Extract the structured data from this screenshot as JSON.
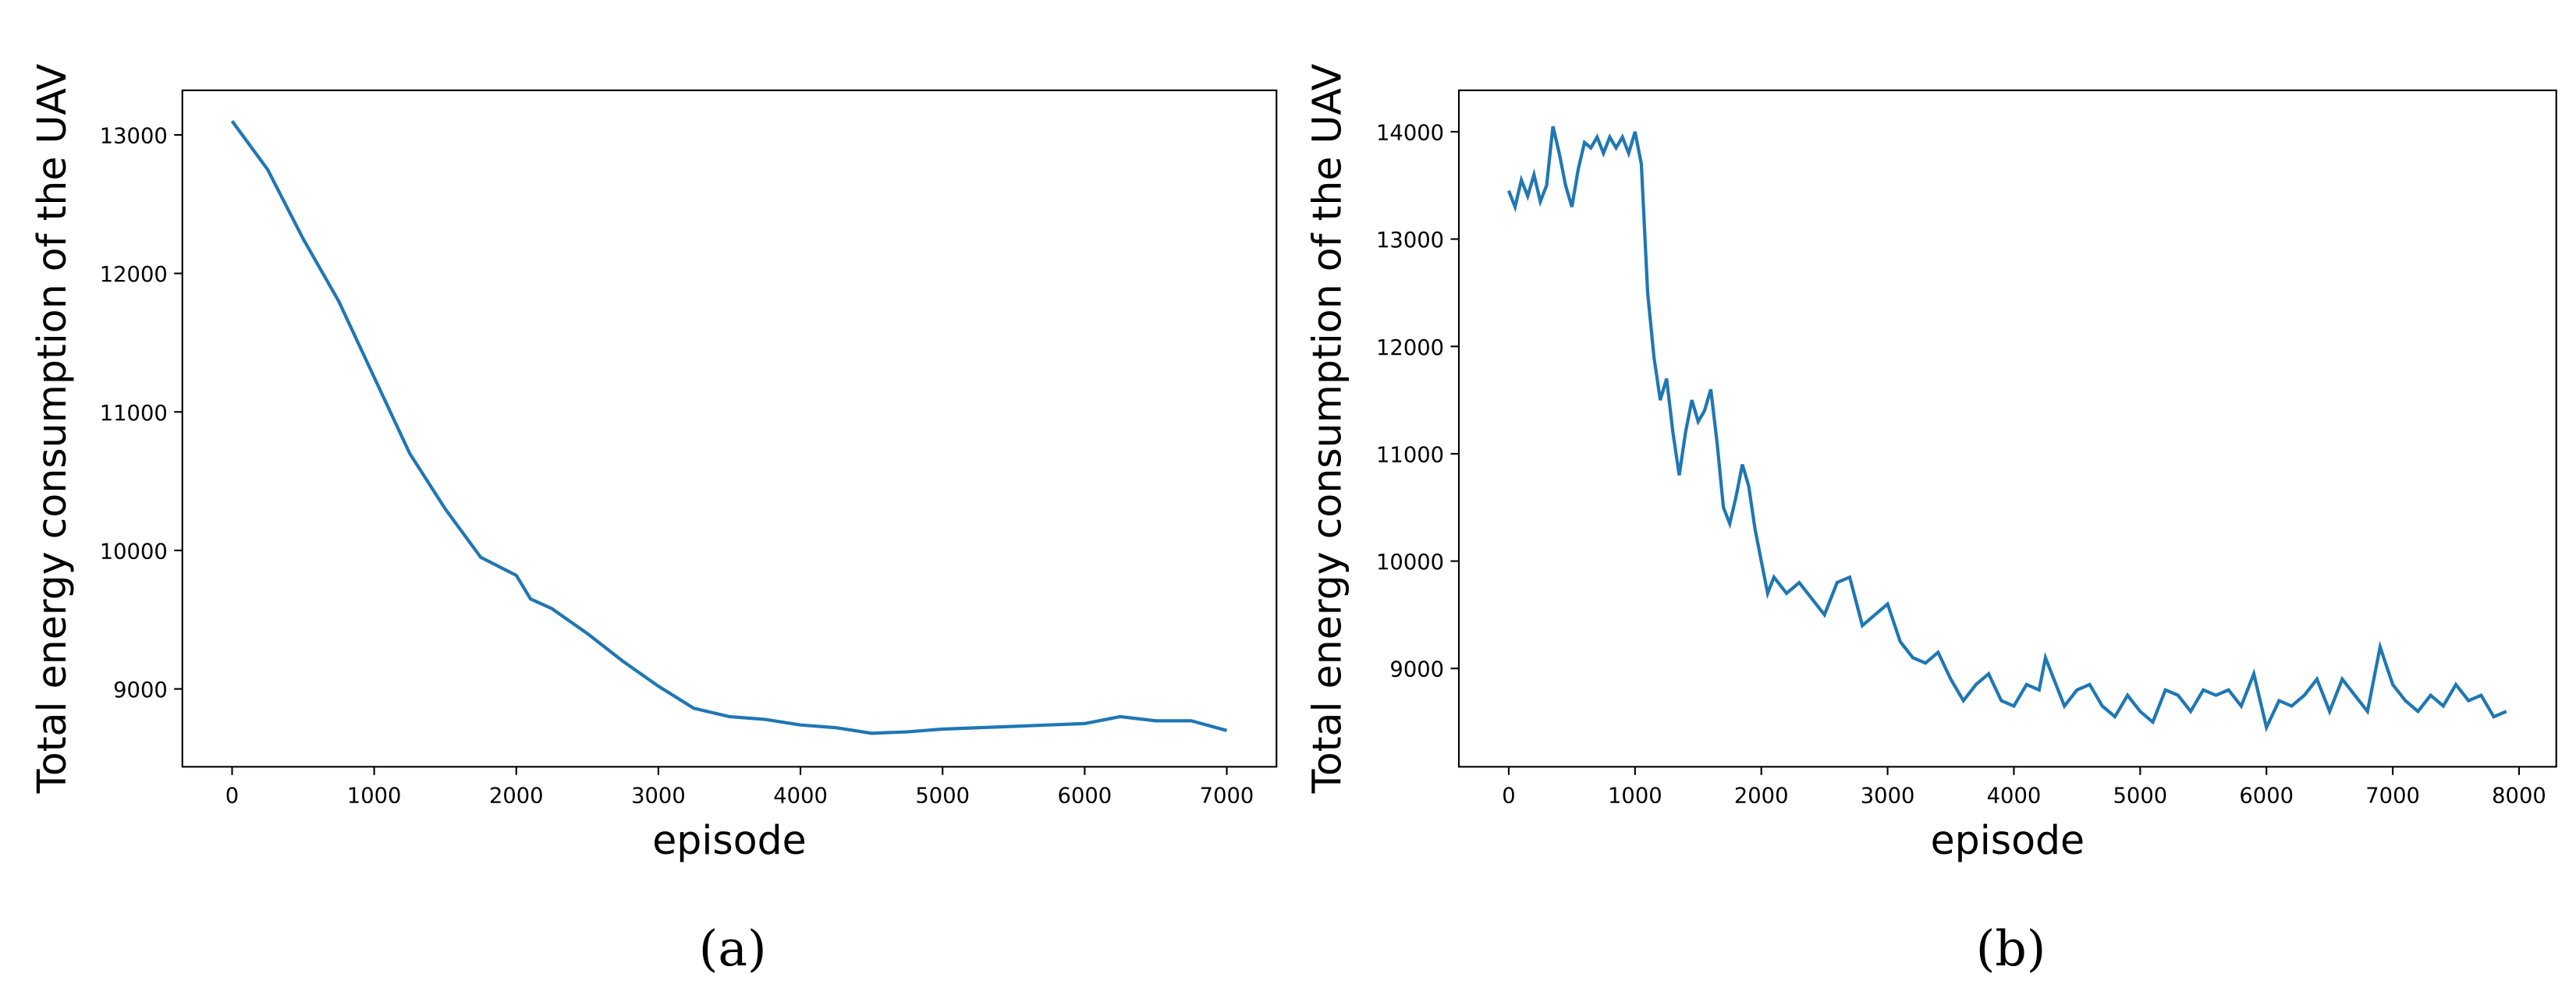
{
  "chart_data": [
    {
      "type": "line",
      "panel_label": "(a)",
      "xlabel": "episode",
      "ylabel": "Total energy consumption of the UAV",
      "color": "#1f77b4",
      "x": [
        0,
        250,
        500,
        750,
        1000,
        1250,
        1500,
        1750,
        2000,
        2100,
        2250,
        2500,
        2750,
        3000,
        3250,
        3500,
        3750,
        4000,
        4250,
        4500,
        4750,
        5000,
        5250,
        5500,
        5750,
        6000,
        6250,
        6500,
        6750,
        7000
      ],
      "values": [
        13100,
        12750,
        12250,
        11800,
        11250,
        10700,
        10300,
        9950,
        9820,
        9650,
        9580,
        9400,
        9200,
        9020,
        8860,
        8800,
        8780,
        8740,
        8720,
        8680,
        8690,
        8710,
        8720,
        8730,
        8740,
        8750,
        8800,
        8770,
        8770,
        8700
      ],
      "xlim": [
        -350,
        7350
      ],
      "ylim": [
        8438,
        13322
      ],
      "xticks": [
        0,
        1000,
        2000,
        3000,
        4000,
        5000,
        6000,
        7000
      ],
      "yticks": [
        9000,
        10000,
        11000,
        12000,
        13000
      ]
    },
    {
      "type": "line",
      "panel_label": "(b)",
      "xlabel": "episode",
      "ylabel": "Total energy consumption of the UAV",
      "color": "#1f77b4",
      "x": [
        0,
        50,
        100,
        150,
        200,
        250,
        300,
        350,
        400,
        450,
        500,
        550,
        600,
        650,
        700,
        750,
        800,
        850,
        900,
        950,
        1000,
        1050,
        1100,
        1150,
        1200,
        1250,
        1300,
        1350,
        1400,
        1450,
        1500,
        1550,
        1600,
        1650,
        1700,
        1750,
        1800,
        1850,
        1900,
        1950,
        2000,
        2050,
        2100,
        2200,
        2300,
        2400,
        2500,
        2600,
        2700,
        2800,
        2900,
        3000,
        3100,
        3200,
        3300,
        3400,
        3500,
        3600,
        3700,
        3800,
        3900,
        4000,
        4100,
        4200,
        4250,
        4300,
        4400,
        4500,
        4600,
        4700,
        4800,
        4900,
        5000,
        5100,
        5200,
        5300,
        5400,
        5500,
        5600,
        5700,
        5800,
        5900,
        6000,
        6100,
        6200,
        6300,
        6400,
        6500,
        6600,
        6700,
        6800,
        6900,
        7000,
        7100,
        7200,
        7300,
        7400,
        7500,
        7600,
        7700,
        7800,
        7900
      ],
      "values": [
        13450,
        13300,
        13550,
        13400,
        13600,
        13350,
        13500,
        14050,
        13800,
        13500,
        13300,
        13650,
        13900,
        13850,
        13950,
        13800,
        13950,
        13850,
        13950,
        13800,
        14000,
        13700,
        12500,
        11900,
        11500,
        11700,
        11200,
        10800,
        11200,
        11500,
        11300,
        11400,
        11600,
        11100,
        10500,
        10350,
        10600,
        10900,
        10700,
        10300,
        10000,
        9700,
        9850,
        9700,
        9800,
        9650,
        9500,
        9800,
        9850,
        9400,
        9500,
        9600,
        9250,
        9100,
        9050,
        9150,
        8900,
        8700,
        8850,
        8950,
        8700,
        8650,
        8850,
        8800,
        9100,
        8950,
        8650,
        8800,
        8850,
        8650,
        8550,
        8750,
        8600,
        8500,
        8800,
        8750,
        8600,
        8800,
        8750,
        8800,
        8650,
        8950,
        8450,
        8700,
        8650,
        8750,
        8900,
        8600,
        8900,
        8750,
        8600,
        9200,
        8850,
        8700,
        8600,
        8750,
        8650,
        8850,
        8700,
        8750,
        8550,
        8600
      ],
      "xlim": [
        -395,
        8295
      ],
      "ylim": [
        8084,
        14386
      ],
      "xticks": [
        0,
        1000,
        2000,
        3000,
        4000,
        5000,
        6000,
        7000,
        8000
      ],
      "yticks": [
        9000,
        10000,
        11000,
        12000,
        13000,
        14000
      ]
    }
  ]
}
